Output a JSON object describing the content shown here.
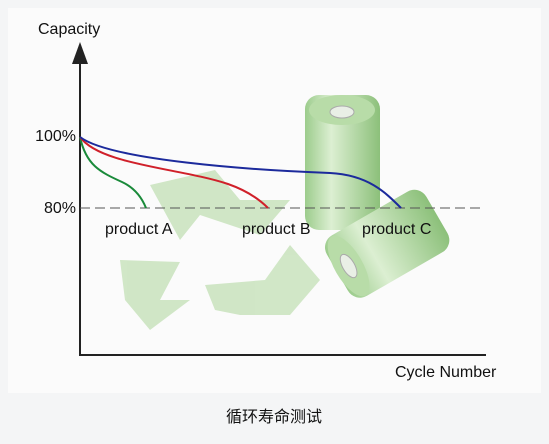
{
  "axis": {
    "y_label": "Capacity",
    "x_label": "Cycle Number",
    "ticks": [
      "100%",
      "80%"
    ]
  },
  "products": [
    "product A",
    "product B",
    "product C"
  ],
  "caption": "循环寿命测试"
}
